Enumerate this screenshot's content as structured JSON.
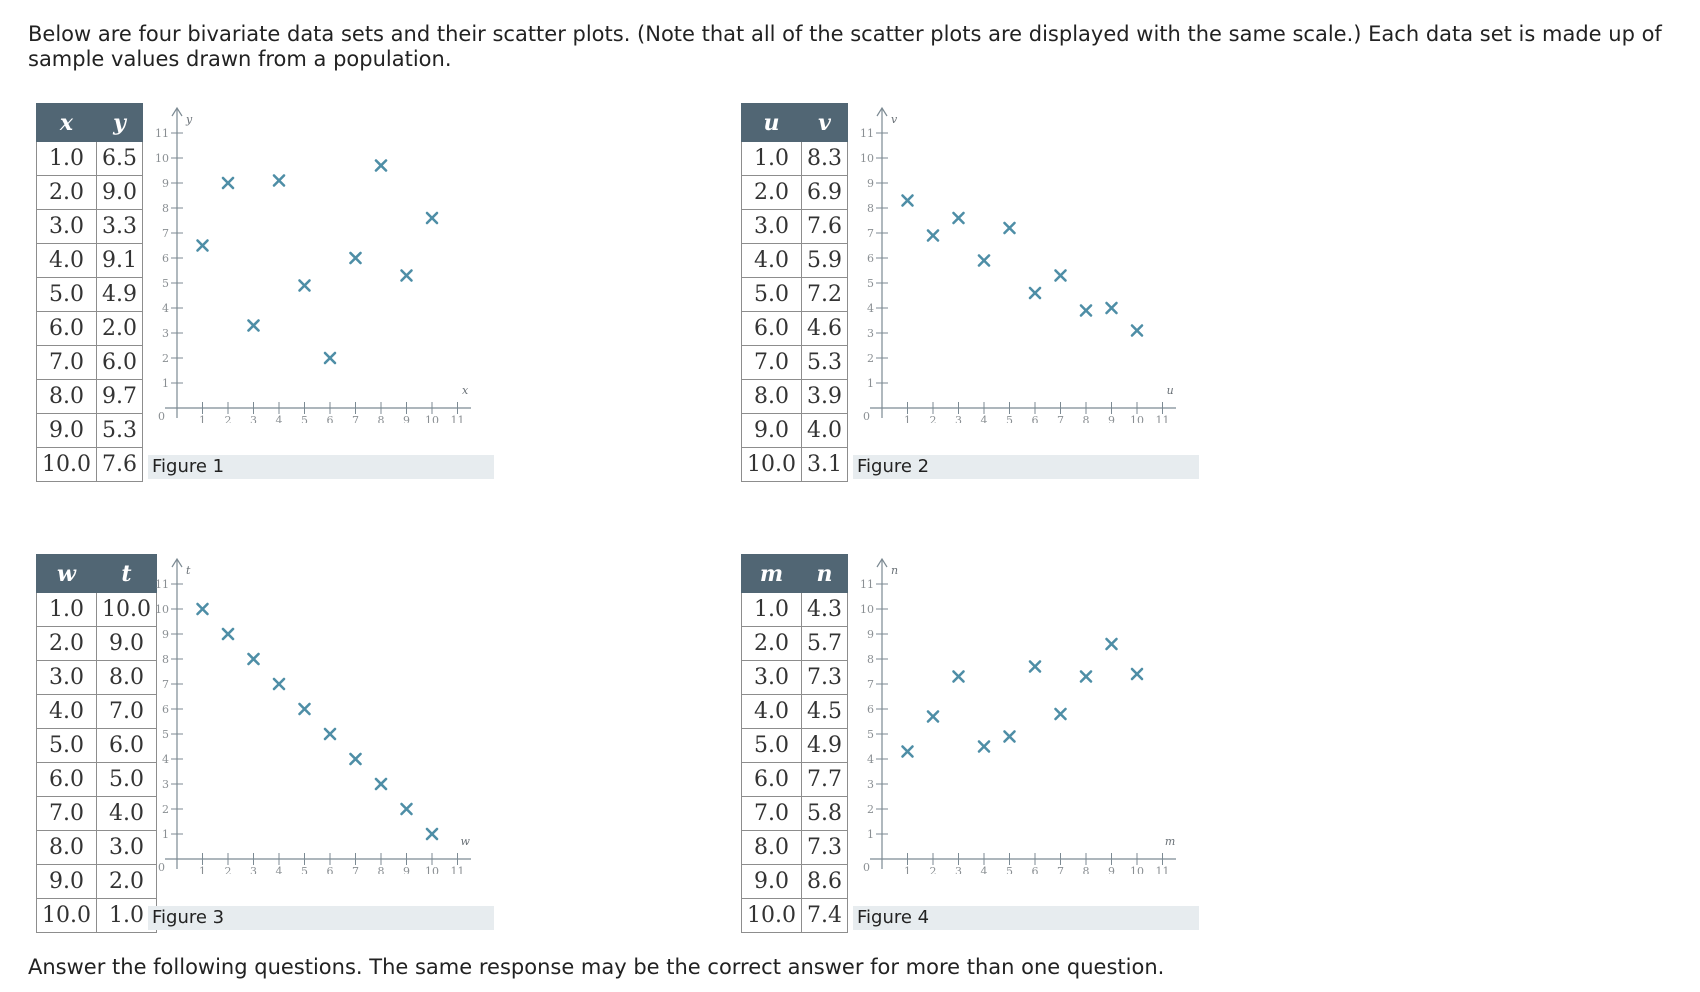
{
  "intro_text": "Below are four bivariate data sets and their scatter plots. (Note that all of the scatter plots are displayed with the same scale.) Each data set is made up of sample values drawn from a population.",
  "outro_text": "Answer the following questions. The same response may be the correct answer for more than one question.",
  "colors": {
    "header_bg": "#516674",
    "marker": "#4e8ea6",
    "caption_bg": "#e7ecef"
  },
  "datasets": [
    {
      "caption": "Figure 1",
      "xname": "x",
      "yname": "y",
      "x": [
        "1.0",
        "2.0",
        "3.0",
        "4.0",
        "5.0",
        "6.0",
        "7.0",
        "8.0",
        "9.0",
        "10.0"
      ],
      "y": [
        "6.5",
        "9.0",
        "3.3",
        "9.1",
        "4.9",
        "2.0",
        "6.0",
        "9.7",
        "5.3",
        "7.6"
      ]
    },
    {
      "caption": "Figure 2",
      "xname": "u",
      "yname": "v",
      "x": [
        "1.0",
        "2.0",
        "3.0",
        "4.0",
        "5.0",
        "6.0",
        "7.0",
        "8.0",
        "9.0",
        "10.0"
      ],
      "y": [
        "8.3",
        "6.9",
        "7.6",
        "5.9",
        "7.2",
        "4.6",
        "5.3",
        "3.9",
        "4.0",
        "3.1"
      ]
    },
    {
      "caption": "Figure 3",
      "xname": "w",
      "yname": "t",
      "x": [
        "1.0",
        "2.0",
        "3.0",
        "4.0",
        "5.0",
        "6.0",
        "7.0",
        "8.0",
        "9.0",
        "10.0"
      ],
      "y": [
        "10.0",
        "9.0",
        "8.0",
        "7.0",
        "6.0",
        "5.0",
        "4.0",
        "3.0",
        "2.0",
        "1.0"
      ]
    },
    {
      "caption": "Figure 4",
      "xname": "m",
      "yname": "n",
      "x": [
        "1.0",
        "2.0",
        "3.0",
        "4.0",
        "5.0",
        "6.0",
        "7.0",
        "8.0",
        "9.0",
        "10.0"
      ],
      "y": [
        "4.3",
        "5.7",
        "7.3",
        "4.5",
        "4.9",
        "7.7",
        "5.8",
        "7.3",
        "8.6",
        "7.4"
      ]
    }
  ],
  "chart_data": [
    {
      "type": "scatter",
      "title": "Figure 1",
      "xlabel": "x",
      "ylabel": "y",
      "xlim": [
        0,
        11
      ],
      "ylim": [
        0,
        11
      ],
      "grid": false,
      "x": [
        1,
        2,
        3,
        4,
        5,
        6,
        7,
        8,
        9,
        10
      ],
      "y": [
        6.5,
        9.0,
        3.3,
        9.1,
        4.9,
        2.0,
        6.0,
        9.7,
        5.3,
        7.6
      ]
    },
    {
      "type": "scatter",
      "title": "Figure 2",
      "xlabel": "u",
      "ylabel": "v",
      "xlim": [
        0,
        11
      ],
      "ylim": [
        0,
        11
      ],
      "grid": false,
      "x": [
        1,
        2,
        3,
        4,
        5,
        6,
        7,
        8,
        9,
        10
      ],
      "y": [
        8.3,
        6.9,
        7.6,
        5.9,
        7.2,
        4.6,
        5.3,
        3.9,
        4.0,
        3.1
      ]
    },
    {
      "type": "scatter",
      "title": "Figure 3",
      "xlabel": "w",
      "ylabel": "t",
      "xlim": [
        0,
        11
      ],
      "ylim": [
        0,
        11
      ],
      "grid": false,
      "x": [
        1,
        2,
        3,
        4,
        5,
        6,
        7,
        8,
        9,
        10
      ],
      "y": [
        10.0,
        9.0,
        8.0,
        7.0,
        6.0,
        5.0,
        4.0,
        3.0,
        2.0,
        1.0
      ]
    },
    {
      "type": "scatter",
      "title": "Figure 4",
      "xlabel": "m",
      "ylabel": "n",
      "xlim": [
        0,
        11
      ],
      "ylim": [
        0,
        11
      ],
      "grid": false,
      "x": [
        1,
        2,
        3,
        4,
        5,
        6,
        7,
        8,
        9,
        10
      ],
      "y": [
        4.3,
        5.7,
        7.3,
        4.5,
        4.9,
        7.7,
        5.8,
        7.3,
        8.6,
        7.4
      ]
    }
  ]
}
